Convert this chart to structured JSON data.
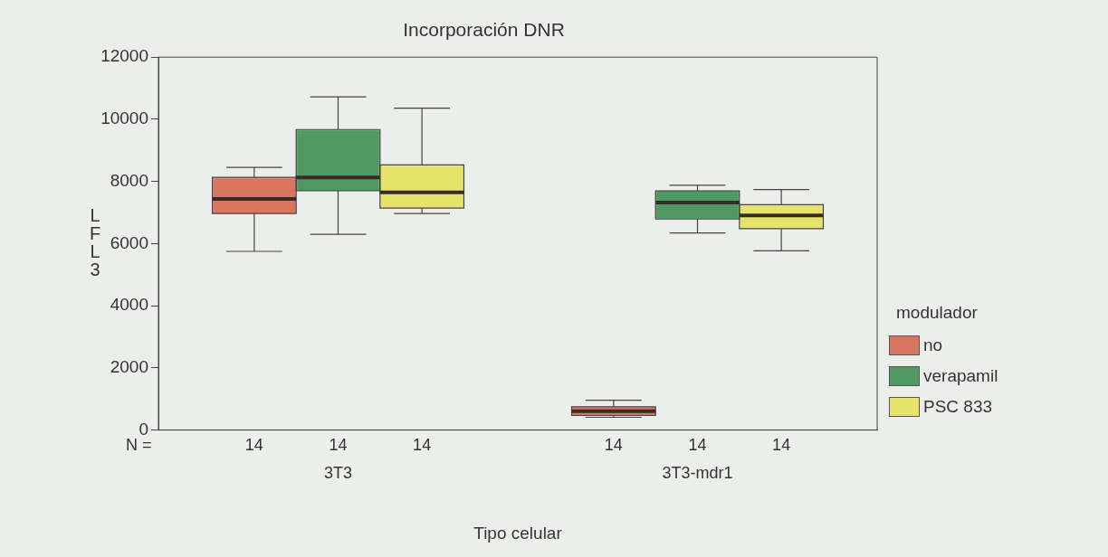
{
  "chart_data": {
    "type": "box",
    "title": "Incorporación DNR",
    "xlabel": "Tipo celular",
    "ylabel": "LFL3",
    "legend_title": "modulador",
    "categories": [
      "3T3",
      "3T3-mdr1"
    ],
    "series": [
      {
        "name": "no",
        "color": "#d9745f",
        "boxes": [
          {
            "low": 5750,
            "q1": 6970,
            "median": 7440,
            "q3": 8130,
            "high": 8450
          },
          {
            "low": 410,
            "q1": 470,
            "median": 610,
            "q3": 750,
            "high": 960
          }
        ]
      },
      {
        "name": "verapamil",
        "color": "#4f9a62",
        "boxes": [
          {
            "low": 6300,
            "q1": 7700,
            "median": 8130,
            "q3": 9670,
            "high": 10720
          },
          {
            "low": 6340,
            "q1": 6790,
            "median": 7320,
            "q3": 7700,
            "high": 7880
          }
        ]
      },
      {
        "name": "PSC 833",
        "color": "#e6e36a",
        "boxes": [
          {
            "low": 6970,
            "q1": 7140,
            "median": 7650,
            "q3": 8530,
            "high": 10360
          },
          {
            "low": 5770,
            "q1": 6480,
            "median": 6910,
            "q3": 7250,
            "high": 7740
          }
        ]
      }
    ],
    "ylim": [
      0,
      12000
    ],
    "yticks": [
      0,
      2000,
      4000,
      6000,
      8000,
      10000,
      12000
    ],
    "annotations": [
      "N =",
      "14",
      "14",
      "14",
      "14",
      "14",
      "14"
    ],
    "grid": false,
    "legend": "right"
  }
}
